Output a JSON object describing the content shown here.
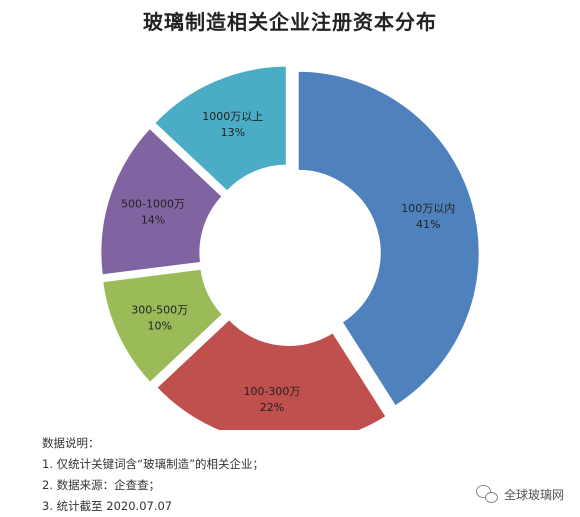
{
  "chart_data": {
    "type": "pie",
    "title": "玻璃制造相关企业注册资本分布",
    "donut": true,
    "categories": [
      "100万以内",
      "100-300万",
      "300-500万",
      "500-1000万",
      "1000万以上"
    ],
    "values": [
      41,
      22,
      10,
      14,
      13
    ],
    "labels": [
      "41%",
      "22%",
      "10%",
      "14%",
      "13%"
    ],
    "colors": [
      "#4f81bd",
      "#c0504d",
      "#9bbb59",
      "#8064a2",
      "#4bacc6"
    ]
  },
  "notes": {
    "heading": "数据说明：",
    "items": [
      "1. 仅统计关键词含“玻璃制造”的相关企业；",
      "2. 数据来源：企查查；",
      "3. 统计截至 2020.07.07"
    ]
  },
  "watermark": {
    "text": "全球玻璃网",
    "icon": "wechat-icon"
  }
}
